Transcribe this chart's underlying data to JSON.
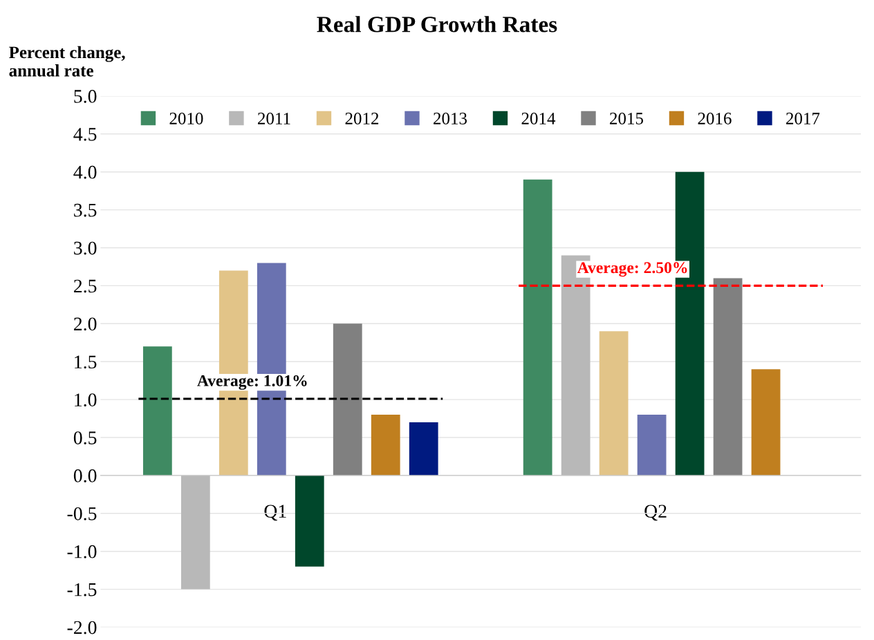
{
  "chart_data": {
    "type": "bar",
    "title": "Real GDP Growth Rates",
    "ylabel": "Percent change,\nannual rate",
    "categories": [
      "Q1",
      "Q2"
    ],
    "series": [
      {
        "name": "2010",
        "color": "#3f8a62",
        "values": [
          1.7,
          3.9
        ]
      },
      {
        "name": "2011",
        "color": "#b8b8b8",
        "values": [
          -1.5,
          2.9
        ]
      },
      {
        "name": "2012",
        "color": "#e2c488",
        "values": [
          2.7,
          1.9
        ]
      },
      {
        "name": "2013",
        "color": "#6a72b0",
        "values": [
          2.8,
          0.8
        ]
      },
      {
        "name": "2014",
        "color": "#00472b",
        "values": [
          -1.2,
          4.0
        ]
      },
      {
        "name": "2015",
        "color": "#808080",
        "values": [
          2.0,
          2.6
        ]
      },
      {
        "name": "2016",
        "color": "#c07f1f",
        "values": [
          0.8,
          1.4
        ]
      },
      {
        "name": "2017",
        "color": "#001a80",
        "values": [
          0.7,
          null
        ]
      }
    ],
    "ref_lines": [
      {
        "axis": "y",
        "value": 1.01,
        "label": "Average: 1.01%",
        "color": "#000000",
        "line_style": "dashed"
      },
      {
        "axis": "y",
        "value": 2.5,
        "label": "Average: 2.50%",
        "color": "#ff0000",
        "line_style": "dashed"
      }
    ],
    "ylim": [
      -2.0,
      5.0
    ],
    "yticks": [
      {
        "value": -2,
        "label": "-2.0"
      },
      {
        "value": -1.5,
        "label": "-1.5"
      },
      {
        "value": -1,
        "label": "-1.0"
      },
      {
        "value": -0.5,
        "label": "-0.5"
      },
      {
        "value": 0,
        "label": "0.0"
      },
      {
        "value": 0.5,
        "label": "0.5"
      },
      {
        "value": 1,
        "label": "1.0"
      },
      {
        "value": 1.5,
        "label": "1.5"
      },
      {
        "value": 2,
        "label": "2.0"
      },
      {
        "value": 2.5,
        "label": "2.5"
      },
      {
        "value": 3,
        "label": "3.0"
      },
      {
        "value": 3.5,
        "label": "3.5"
      },
      {
        "value": 4,
        "label": "4.0"
      },
      {
        "value": 4.5,
        "label": "4.5"
      },
      {
        "value": 5,
        "label": "5.0"
      }
    ],
    "legend": "top",
    "grid": "y"
  }
}
